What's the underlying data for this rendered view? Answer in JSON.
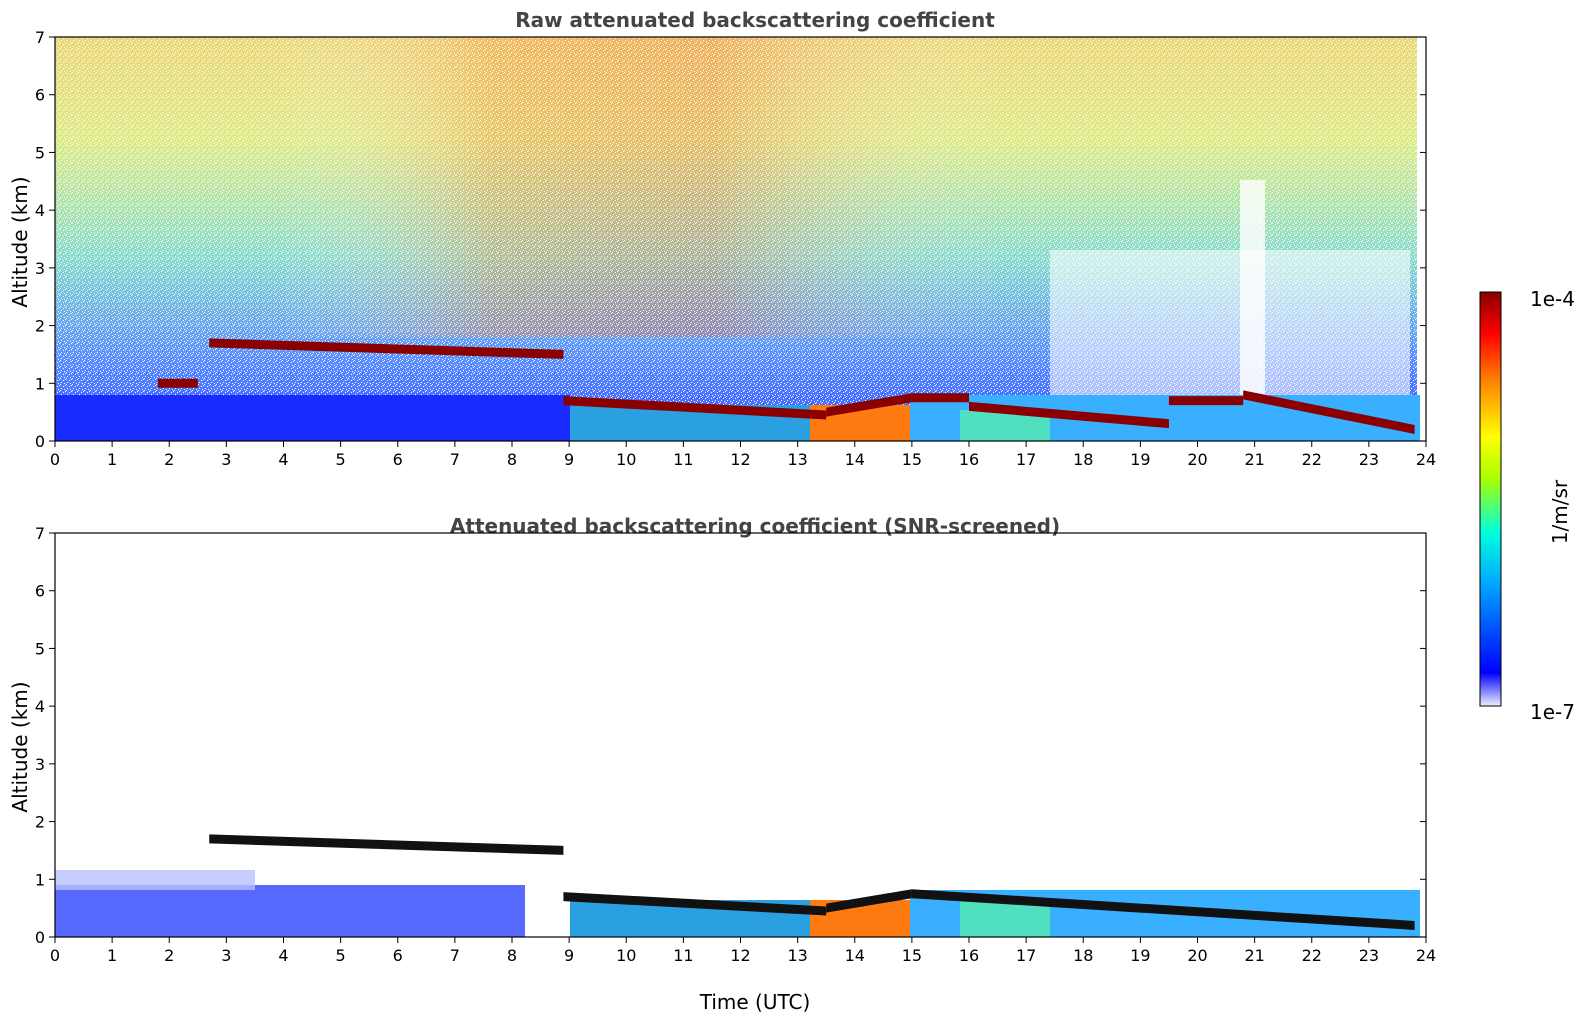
{
  "chart_data": [
    {
      "type": "heatmap",
      "title": "Raw attenuated backscattering coefficient",
      "xlabel": "",
      "ylabel": "Altitude (km)",
      "xlim": [
        0,
        24
      ],
      "ylim": [
        0,
        7
      ],
      "x_ticks": [
        "0",
        "1",
        "2",
        "3",
        "4",
        "5",
        "6",
        "7",
        "8",
        "9",
        "10",
        "11",
        "12",
        "13",
        "14",
        "15",
        "16",
        "17",
        "18",
        "19",
        "20",
        "21",
        "22",
        "23",
        "24"
      ],
      "y_ticks": [
        "0",
        "1",
        "2",
        "3",
        "4",
        "5",
        "6",
        "7"
      ],
      "layers": [
        {
          "x_start": 2.7,
          "x_end": 8.9,
          "alt_start": 1.7,
          "alt_end": 1.5
        },
        {
          "x_start": 1.8,
          "x_end": 2.5,
          "alt_start": 1.0,
          "alt_end": 1.0
        },
        {
          "x_start": 8.9,
          "x_end": 13.5,
          "alt_start": 0.7,
          "alt_end": 0.45
        },
        {
          "x_start": 13.5,
          "x_end": 15.0,
          "alt_start": 0.5,
          "alt_end": 0.75
        },
        {
          "x_start": 15.0,
          "x_end": 16.0,
          "alt_start": 0.75,
          "alt_end": 0.75
        },
        {
          "x_start": 16.0,
          "x_end": 19.5,
          "alt_start": 0.6,
          "alt_end": 0.3
        },
        {
          "x_start": 19.5,
          "x_end": 20.8,
          "alt_start": 0.7,
          "alt_end": 0.7
        },
        {
          "x_start": 20.8,
          "x_end": 23.8,
          "alt_start": 0.8,
          "alt_end": 0.2
        }
      ]
    },
    {
      "type": "heatmap",
      "title": "Attenuated backscattering coefficient (SNR-screened)",
      "xlabel": "Time (UTC)",
      "ylabel": "Altitude (km)",
      "xlim": [
        0,
        24
      ],
      "ylim": [
        0,
        7
      ],
      "x_ticks": [
        "0",
        "1",
        "2",
        "3",
        "4",
        "5",
        "6",
        "7",
        "8",
        "9",
        "10",
        "11",
        "12",
        "13",
        "14",
        "15",
        "16",
        "17",
        "18",
        "19",
        "20",
        "21",
        "22",
        "23",
        "24"
      ],
      "y_ticks": [
        "0",
        "1",
        "2",
        "3",
        "4",
        "5",
        "6",
        "7"
      ],
      "layers": [
        {
          "x_start": 2.7,
          "x_end": 8.9,
          "alt_start": 1.7,
          "alt_end": 1.5
        },
        {
          "x_start": 8.9,
          "x_end": 13.5,
          "alt_start": 0.7,
          "alt_end": 0.45
        },
        {
          "x_start": 13.5,
          "x_end": 15.0,
          "alt_start": 0.5,
          "alt_end": 0.75
        },
        {
          "x_start": 15.0,
          "x_end": 23.8,
          "alt_start": 0.75,
          "alt_end": 0.2
        }
      ]
    }
  ],
  "colorbar": {
    "max_label": "1e-4",
    "min_label": "1e-7",
    "unit": "1/m/sr",
    "colors": [
      "#eeeeff",
      "#0000ff",
      "#00aaff",
      "#00ffdd",
      "#aaff00",
      "#ffff00",
      "#ff8800",
      "#ff0000",
      "#880000"
    ]
  }
}
